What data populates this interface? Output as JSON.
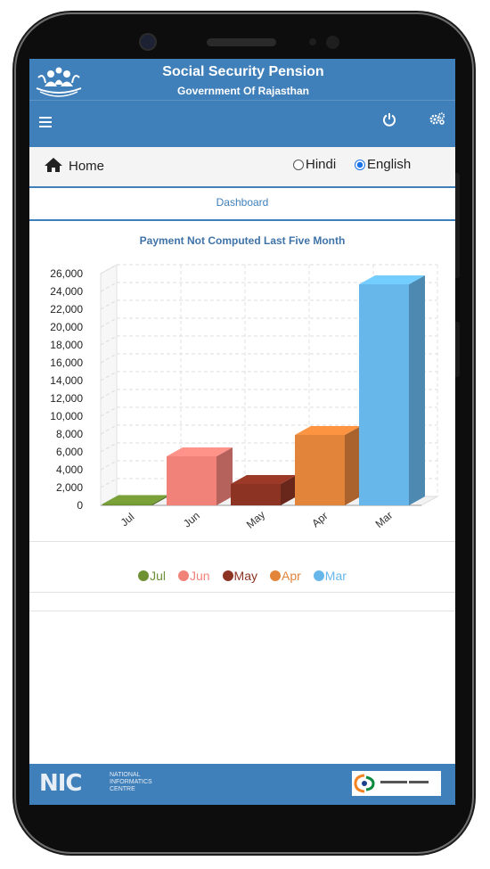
{
  "header": {
    "title": "Social Security Pension",
    "subtitle": "Government Of Rajasthan"
  },
  "toolbar": {
    "menu_icon": "hamburger-menu-icon",
    "power_icon": "power-icon",
    "settings_icon": "gears-icon"
  },
  "nav": {
    "home_label": "Home",
    "languages": [
      {
        "label": "Hindi",
        "selected": false
      },
      {
        "label": "English",
        "selected": true
      }
    ]
  },
  "tab": {
    "label": "Dashboard"
  },
  "chart_data": {
    "type": "bar",
    "title": "Payment Not Computed Last Five Month",
    "categories": [
      "Jul",
      "Jun",
      "May",
      "Apr",
      "Mar"
    ],
    "values": [
      150,
      5500,
      2400,
      7900,
      24800
    ],
    "colors": [
      "#6d9133",
      "#f1827a",
      "#8c3323",
      "#e2843a",
      "#67b7ea"
    ],
    "xlabel": "",
    "ylabel": "",
    "ylim": [
      0,
      26000
    ],
    "yticks": [
      "0",
      "2,000",
      "4,000",
      "6,000",
      "8,000",
      "10,000",
      "12,000",
      "14,000",
      "16,000",
      "18,000",
      "20,000",
      "22,000",
      "24,000",
      "26,000"
    ],
    "grid": true,
    "legend_position": "bottom"
  },
  "legend": [
    {
      "label": "Jul",
      "color": "#6d9133"
    },
    {
      "label": "Jun",
      "color": "#f1827a"
    },
    {
      "label": "May",
      "color": "#8c3323"
    },
    {
      "label": "Apr",
      "color": "#e2843a"
    },
    {
      "label": "Mar",
      "color": "#67b7ea"
    }
  ],
  "footer": {
    "nic_abbr": "NIC",
    "nic_line1": "NATIONAL",
    "nic_line2": "INFORMATICS",
    "nic_line3": "CENTRE"
  }
}
